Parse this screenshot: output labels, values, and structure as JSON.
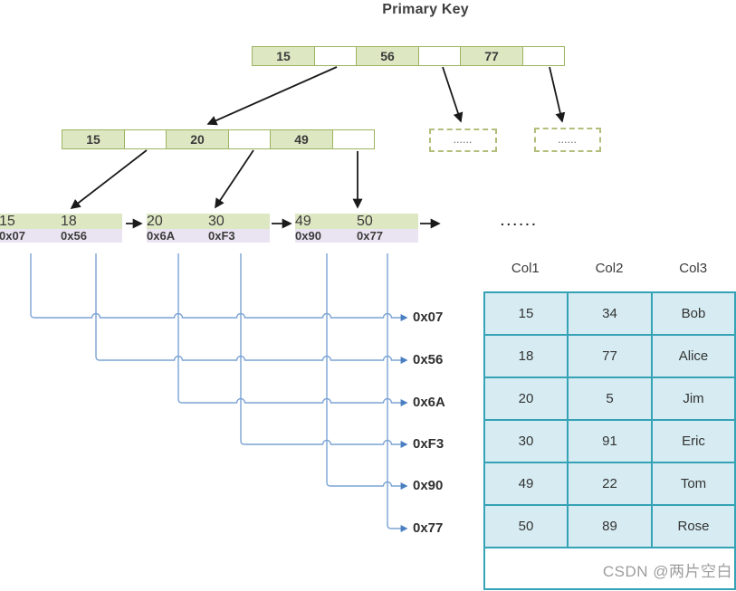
{
  "title": "Primary Key",
  "tree": {
    "root": {
      "cells": [
        "15",
        "",
        "56",
        "",
        "77",
        ""
      ]
    },
    "internal": {
      "cells": [
        "15",
        "",
        "20",
        "",
        "49",
        ""
      ]
    },
    "dashed_nodes": [
      "......",
      "......"
    ],
    "leaves": [
      {
        "keys": [
          "15",
          "18"
        ],
        "pointers": [
          "0x07",
          "0x56"
        ]
      },
      {
        "keys": [
          "20",
          "30"
        ],
        "pointers": [
          "0x6A",
          "0xF3"
        ]
      },
      {
        "keys": [
          "49",
          "50"
        ],
        "pointers": [
          "0x90",
          "0x77"
        ]
      }
    ],
    "leaf_ellipsis": "......"
  },
  "address_labels": [
    "0x07",
    "0x56",
    "0x6A",
    "0xF3",
    "0x90",
    "0x77"
  ],
  "table": {
    "headers": [
      "Col1",
      "Col2",
      "Col3"
    ],
    "rows": [
      [
        "15",
        "34",
        "Bob"
      ],
      [
        "18",
        "77",
        "Alice"
      ],
      [
        "20",
        "5",
        "Jim"
      ],
      [
        "30",
        "91",
        "Eric"
      ],
      [
        "49",
        "22",
        "Tom"
      ],
      [
        "50",
        "89",
        "Rose"
      ]
    ],
    "footer": ""
  },
  "watermark": "CSDN @两片空白",
  "colors": {
    "node_green": "#dde8c3",
    "node_border": "#9cb35f",
    "addr_fill": "#eae4f2",
    "addr_border": "#a292c6",
    "dashed_border": "#b4bd7a",
    "table_fill": "#d6ecf2",
    "table_border": "#35a2b5",
    "line_blue": "#7ba3d4",
    "line_blue_head": "#4a7fc1",
    "arrow_black": "#1a1a1a"
  }
}
